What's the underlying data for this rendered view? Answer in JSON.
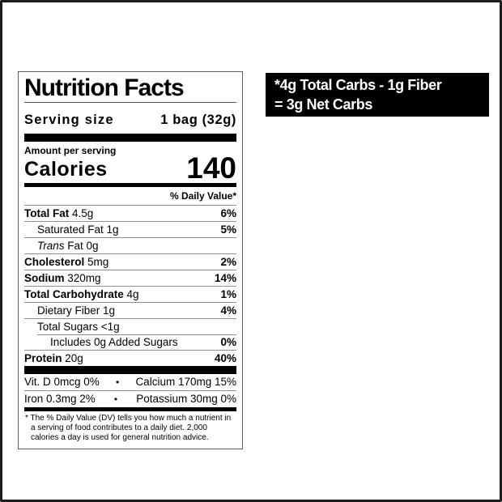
{
  "label": {
    "title": "Nutrition Facts",
    "serving_size_label": "Serving size",
    "serving_size_value": "1 bag (32g)",
    "amount_per_serving": "Amount per serving",
    "calories_label": "Calories",
    "calories_value": "140",
    "daily_value_header": "% Daily Value*",
    "rows": [
      {
        "text_bold": "Total Fat",
        "text_italic": "",
        "text_regular": " 4.5g",
        "dv": "6%"
      },
      {
        "text_bold": "",
        "text_italic": "",
        "text_regular": "Saturated Fat 1g",
        "dv": "5%"
      },
      {
        "text_bold": "",
        "text_italic": "Trans",
        "text_regular": " Fat 0g",
        "dv": ""
      },
      {
        "text_bold": "Cholesterol",
        "text_italic": "",
        "text_regular": " 5mg",
        "dv": "2%"
      },
      {
        "text_bold": "Sodium",
        "text_italic": "",
        "text_regular": " 320mg",
        "dv": "14%"
      },
      {
        "text_bold": "Total Carbohydrate",
        "text_italic": "",
        "text_regular": " 4g",
        "dv": "1%"
      },
      {
        "text_bold": "",
        "text_italic": "",
        "text_regular": "Dietary Fiber 1g",
        "dv": "4%"
      },
      {
        "text_bold": "",
        "text_italic": "",
        "text_regular": "Total Sugars <1g",
        "dv": ""
      },
      {
        "text_bold": "",
        "text_italic": "",
        "text_regular": "Includes 0g Added Sugars",
        "dv": "0%"
      },
      {
        "text_bold": "Protein",
        "text_italic": "",
        "text_regular": " 20g",
        "dv": "40%"
      }
    ],
    "micronutrients": [
      {
        "left": "Vit. D 0mcg 0%",
        "separator": "•",
        "right": "Calcium 170mg 15%"
      },
      {
        "left": "Iron 0.3mg 2%",
        "separator": "•",
        "right": "Potassium 30mg 0%"
      }
    ],
    "footnote": "* The % Daily Value (DV) tells you how much a nutrient in a serving of food contributes to a daily diet. 2,000 calories a day is used for general nutrition advice."
  },
  "callout": {
    "line1": "*4g Total Carbs - 1g Fiber",
    "line2": "= 3g Net Carbs",
    "background": "#000000",
    "text_color": "#ffffff"
  },
  "colors": {
    "frame_border": "#1c1c1c",
    "label_border": "#5f5f5f",
    "hairline": "#8f8f8f",
    "bar": "#000000"
  }
}
